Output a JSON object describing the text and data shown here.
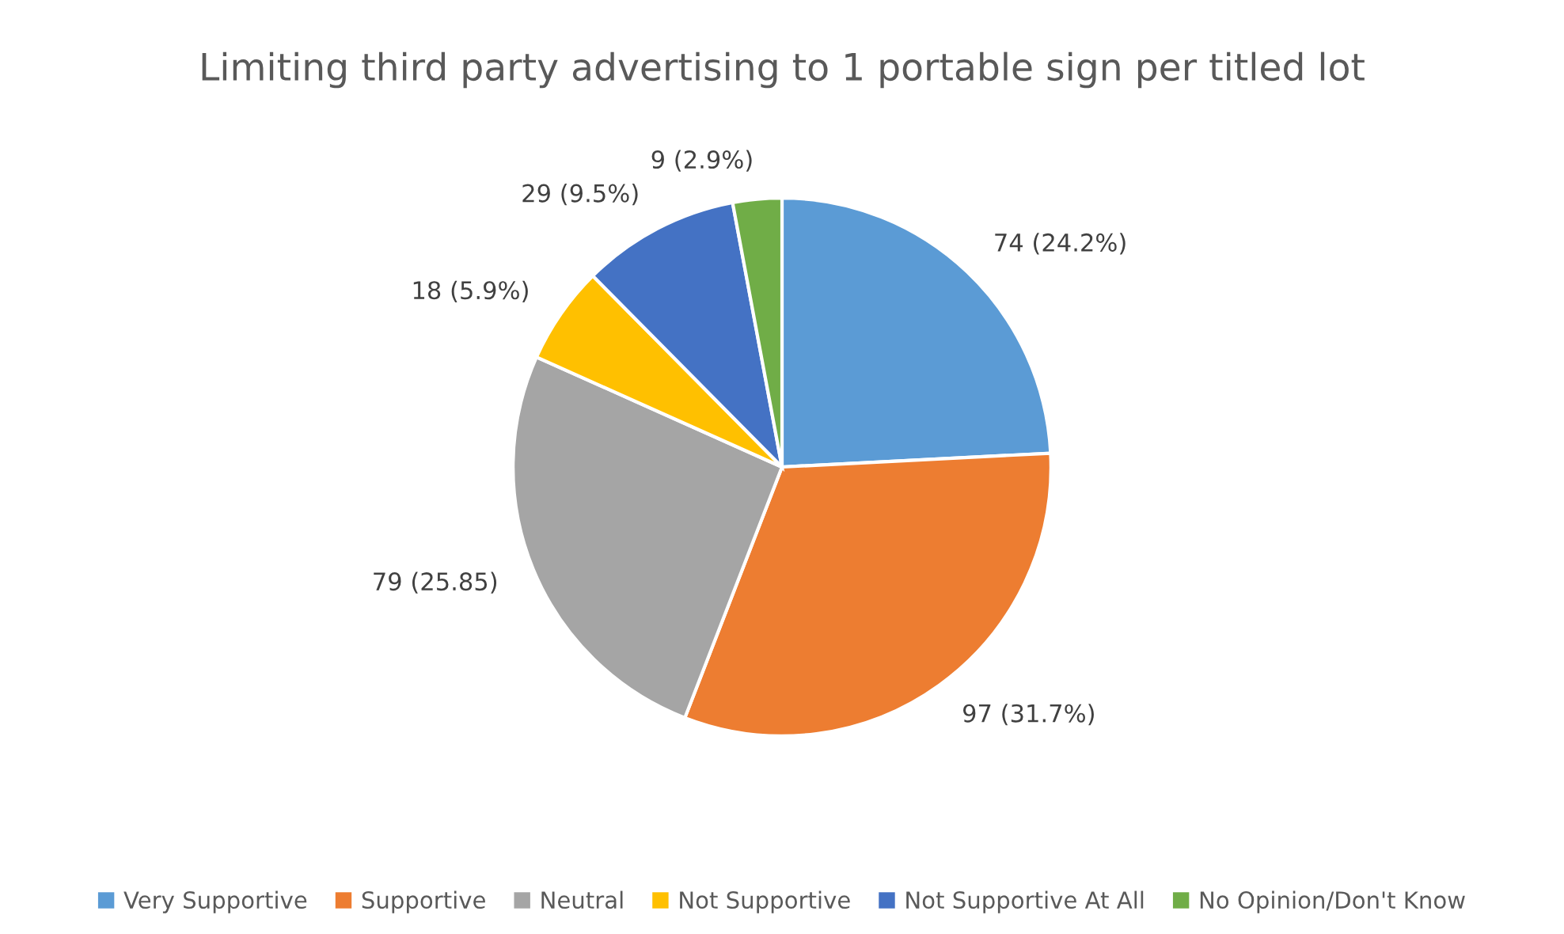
{
  "chart_data": {
    "type": "pie",
    "title": "Limiting third party advertising to 1 portable sign per titled lot",
    "categories": [
      "Very Supportive",
      "Supportive",
      "Neutral",
      "Not Supportive",
      "Not Supportive At All",
      "No Opinion/Don't Know"
    ],
    "values": [
      74,
      97,
      79,
      18,
      29,
      9
    ],
    "colors": [
      "#5b9bd5",
      "#ed7d31",
      "#a5a5a5",
      "#ffc000",
      "#4472c4",
      "#70ad47"
    ],
    "value_labels": [
      "74 (24.2%)",
      "97 (31.7%)",
      "79 (25.85)",
      "18 (5.9%)",
      "29 (9.5%)",
      "9 (2.9%)"
    ],
    "legend": "bottom"
  }
}
